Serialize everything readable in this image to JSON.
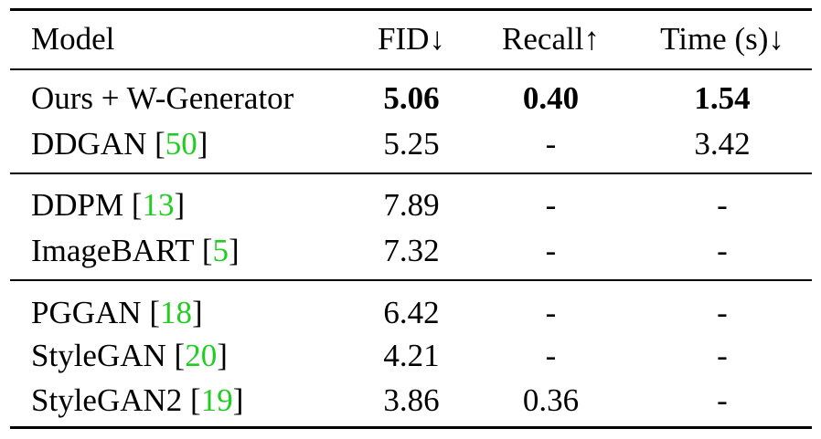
{
  "table": {
    "headers": {
      "model": "Model",
      "fid": "FID↓",
      "recall": "Recall↑",
      "time": "Time (s)↓"
    },
    "groups": [
      [
        {
          "name": "Ours + W-Generator",
          "ref": "",
          "fid": "5.06",
          "recall": "0.40",
          "time": "1.54",
          "bold": true
        },
        {
          "name": "DDGAN",
          "ref": "50",
          "fid": "5.25",
          "recall": "-",
          "time": "3.42",
          "bold": false
        }
      ],
      [
        {
          "name": "DDPM",
          "ref": "13",
          "fid": "7.89",
          "recall": "-",
          "time": "-",
          "bold": false
        },
        {
          "name": "ImageBART",
          "ref": "5",
          "fid": "7.32",
          "recall": "-",
          "time": "-",
          "bold": false
        }
      ],
      [
        {
          "name": "PGGAN",
          "ref": "18",
          "fid": "6.42",
          "recall": "-",
          "time": "-",
          "bold": false
        },
        {
          "name": "StyleGAN",
          "ref": "20",
          "fid": "4.21",
          "recall": "-",
          "time": "-",
          "bold": false
        },
        {
          "name": "StyleGAN2",
          "ref": "19",
          "fid": "3.86",
          "recall": "0.36",
          "time": "-",
          "bold": false
        }
      ]
    ]
  }
}
